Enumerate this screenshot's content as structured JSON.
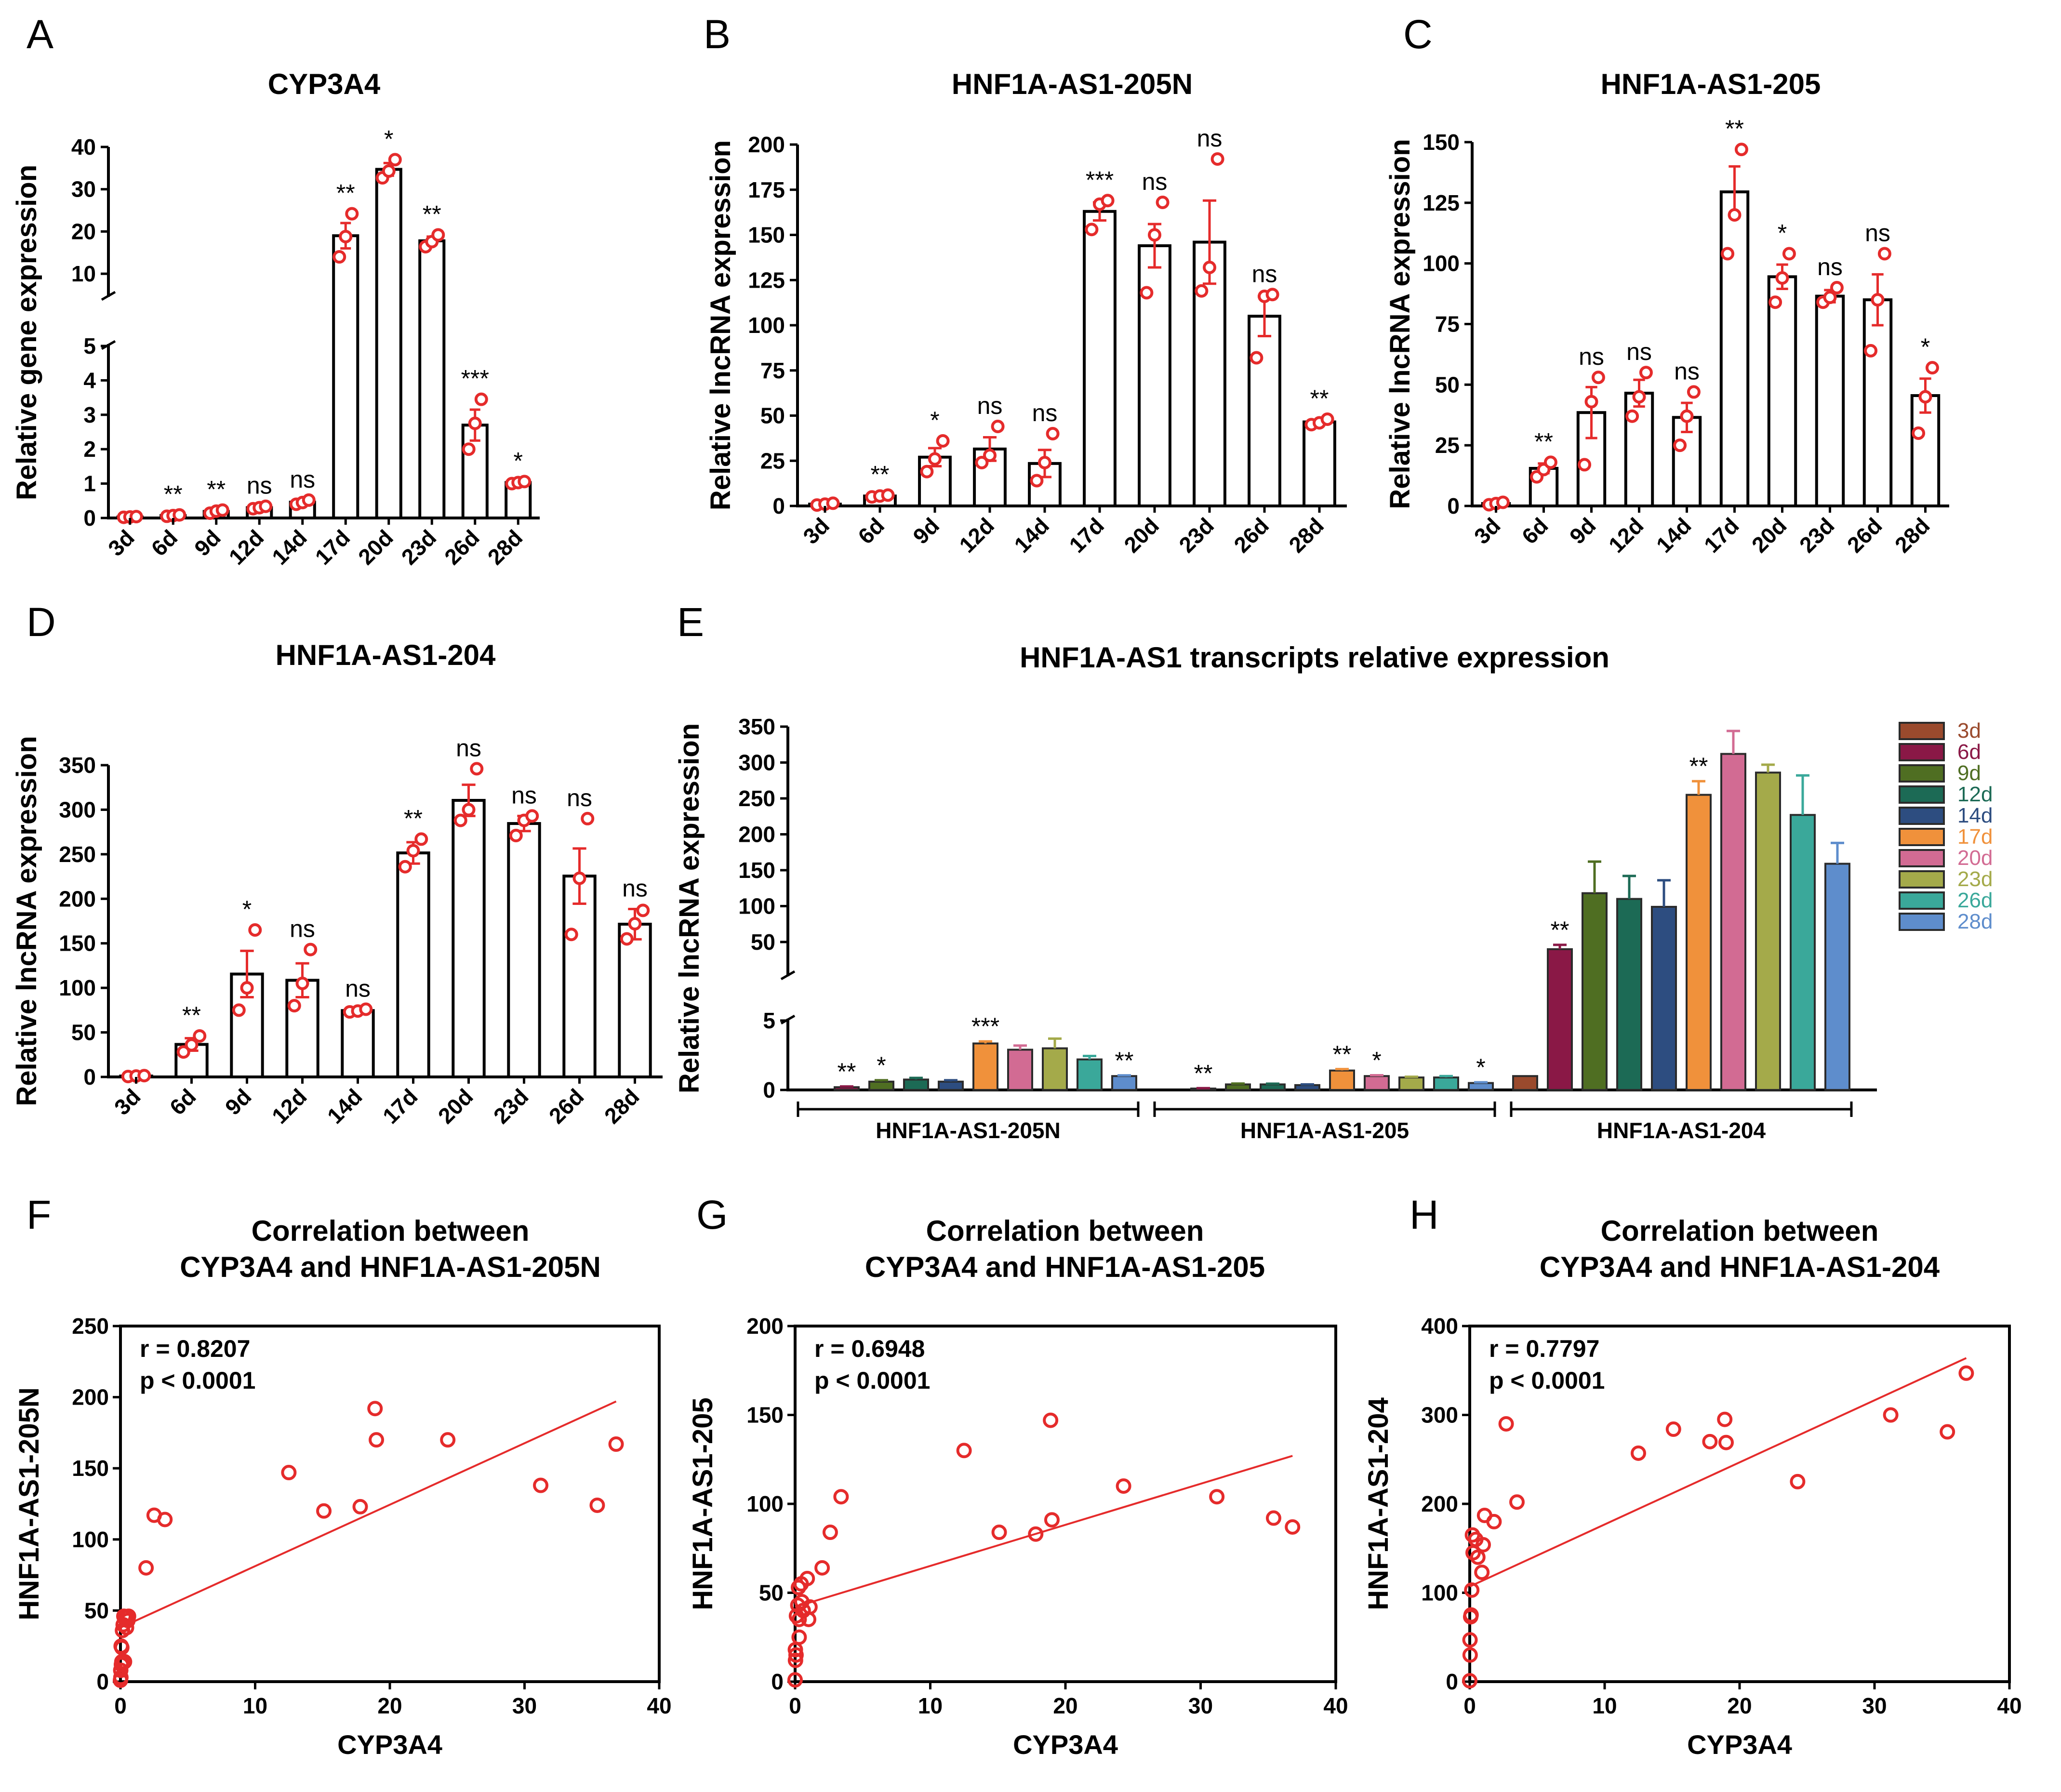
{
  "chart_data": [
    {
      "panel": "A",
      "type": "bar",
      "title": "CYP3A4",
      "ylabel": "Relative gene expression",
      "xlabel": "",
      "categories": [
        "3d",
        "6d",
        "9d",
        "12d",
        "14d",
        "17d",
        "20d",
        "23d",
        "26d",
        "28d"
      ],
      "values": [
        0.03,
        0.07,
        0.19,
        0.3,
        0.46,
        19,
        34.7,
        17.8,
        2.7,
        1.03
      ],
      "errors": [
        0.01,
        0.02,
        0.04,
        0.03,
        0.05,
        3,
        1.5,
        1.0,
        0.45,
        0.03
      ],
      "points": [
        [
          0.02,
          0.03,
          0.04
        ],
        [
          0.05,
          0.07,
          0.09
        ],
        [
          0.14,
          0.2,
          0.23
        ],
        [
          0.27,
          0.3,
          0.34
        ],
        [
          0.4,
          0.45,
          0.52
        ],
        [
          14,
          18.8,
          24.2
        ],
        [
          32.7,
          34.3,
          37
        ],
        [
          16.4,
          17.6,
          19.2
        ],
        [
          2.0,
          2.75,
          3.45
        ],
        [
          1.0,
          1.03,
          1.06
        ]
      ],
      "significance": [
        "",
        "**",
        "**",
        "ns",
        "ns",
        "**",
        "*",
        "**",
        "***",
        "*"
      ],
      "axis_break": {
        "lower_range": [
          0,
          5
        ],
        "upper_range": [
          5,
          40
        ]
      },
      "yticks_lower": [
        "0",
        "1",
        "2",
        "3",
        "4",
        "5"
      ],
      "yticks_upper": [
        "10",
        "20",
        "30",
        "40"
      ]
    },
    {
      "panel": "B",
      "type": "bar",
      "title": "HNF1A-AS1-205N",
      "ylabel": "Relative lncRNA expression",
      "categories": [
        "3d",
        "6d",
        "9d",
        "12d",
        "14d",
        "17d",
        "20d",
        "23d",
        "26d",
        "28d"
      ],
      "values": [
        1,
        5.5,
        27,
        31.5,
        23.5,
        163,
        144,
        146,
        105,
        46.5
      ],
      "errors": [
        0.5,
        0.5,
        5,
        6.5,
        7.5,
        5,
        12,
        23,
        11,
        1
      ],
      "points": [
        [
          0.5,
          1,
          1.5
        ],
        [
          5,
          5.5,
          6
        ],
        [
          19,
          26,
          36
        ],
        [
          24,
          28,
          44
        ],
        [
          14,
          24,
          40
        ],
        [
          153,
          167,
          169
        ],
        [
          118,
          150,
          168
        ],
        [
          119,
          132,
          192
        ],
        [
          82,
          116,
          117
        ],
        [
          45,
          46,
          48
        ]
      ],
      "significance": [
        "",
        "**",
        "*",
        "ns",
        "ns",
        "***",
        "ns",
        "ns",
        "ns",
        "**"
      ],
      "ylim": [
        0,
        200
      ],
      "yticks": [
        "0",
        "25",
        "50",
        "75",
        "100",
        "125",
        "150",
        "175",
        "200"
      ]
    },
    {
      "panel": "C",
      "type": "bar",
      "title": "HNF1A-AS1-205",
      "ylabel": "Relative lncRNA expression",
      "categories": [
        "3d",
        "6d",
        "9d",
        "12d",
        "14d",
        "17d",
        "20d",
        "23d",
        "26d",
        "28d"
      ],
      "values": [
        1,
        15.5,
        38.5,
        46.5,
        36.5,
        129.5,
        94.5,
        86.5,
        85,
        45.5
      ],
      "errors": [
        0.5,
        2,
        10.5,
        5.5,
        6,
        10.5,
        5,
        2.5,
        10.5,
        7
      ],
      "points": [
        [
          0.5,
          1,
          1.5
        ],
        [
          12,
          15,
          18
        ],
        [
          17,
          43,
          53
        ],
        [
          37,
          45,
          55
        ],
        [
          25,
          37,
          47
        ],
        [
          104,
          120,
          147
        ],
        [
          84,
          94,
          104
        ],
        [
          84,
          86,
          90
        ],
        [
          64,
          85,
          104
        ],
        [
          30,
          45,
          57
        ]
      ],
      "significance": [
        "",
        "**",
        "ns",
        "ns",
        "ns",
        "**",
        "*",
        "ns",
        "ns",
        "*"
      ],
      "ylim": [
        0,
        150
      ],
      "yticks": [
        "0",
        "25",
        "50",
        "75",
        "100",
        "125",
        "150"
      ]
    },
    {
      "panel": "D",
      "type": "bar",
      "title": "HNF1A-AS1-204",
      "ylabel": "Relative lncRNA expression",
      "categories": [
        "3d",
        "6d",
        "9d",
        "12d",
        "14d",
        "17d",
        "20d",
        "23d",
        "26d",
        "28d"
      ],
      "values": [
        1,
        36.5,
        115.5,
        108.5,
        74.5,
        251.5,
        310.5,
        284.5,
        225.5,
        171.5
      ],
      "errors": [
        0.5,
        7,
        26,
        19,
        1.5,
        12,
        17.5,
        8.5,
        31,
        17
      ],
      "points": [
        [
          0.5,
          1,
          1.5
        ],
        [
          28,
          36,
          46
        ],
        [
          75,
          100,
          165
        ],
        [
          80,
          105,
          143
        ],
        [
          73,
          74,
          76
        ],
        [
          236,
          254,
          267
        ],
        [
          288,
          300,
          346
        ],
        [
          271,
          288,
          293
        ],
        [
          160,
          223,
          290
        ],
        [
          155,
          172,
          187
        ]
      ],
      "significance": [
        "",
        "**",
        "*",
        "ns",
        "ns",
        "**",
        "ns",
        "ns",
        "ns",
        "ns"
      ],
      "ylim": [
        0,
        350
      ],
      "yticks": [
        "0",
        "50",
        "100",
        "150",
        "200",
        "250",
        "300",
        "350"
      ]
    },
    {
      "panel": "E",
      "type": "bar",
      "title": "HNF1A-AS1 transcripts relative expression",
      "ylabel": "Relative lncRNA expression",
      "groups": [
        "HNF1A-AS1-205N",
        "HNF1A-AS1-205",
        "HNF1A-AS1-204"
      ],
      "series": [
        {
          "name": "3d",
          "color": "#9a4a2d",
          "values": [
            0,
            0,
            1
          ],
          "errors": [
            0,
            0,
            0
          ],
          "significance": [
            "",
            "",
            ""
          ]
        },
        {
          "name": "6d",
          "color": "#8a1846",
          "values": [
            0.2,
            0.1,
            40
          ],
          "errors": [
            0.05,
            0.03,
            6
          ],
          "significance": [
            "**",
            "**",
            "**"
          ]
        },
        {
          "name": "9d",
          "color": "#4f6e22",
          "values": [
            0.6,
            0.4,
            118
          ],
          "errors": [
            0.1,
            0.06,
            44
          ],
          "significance": [
            "*",
            "",
            ""
          ]
        },
        {
          "name": "12d",
          "color": "#1c6a55",
          "values": [
            0.75,
            0.4,
            110
          ],
          "errors": [
            0.12,
            0.05,
            32
          ],
          "significance": [
            "",
            "",
            ""
          ]
        },
        {
          "name": "14d",
          "color": "#2d4d80",
          "values": [
            0.6,
            0.35,
            99
          ],
          "errors": [
            0.1,
            0.05,
            37
          ],
          "significance": [
            "",
            "",
            ""
          ]
        },
        {
          "name": "17d",
          "color": "#f0913b",
          "values": [
            3.35,
            1.4,
            255
          ],
          "errors": [
            0.15,
            0.1,
            19
          ],
          "significance": [
            "***",
            "**",
            "**"
          ]
        },
        {
          "name": "20d",
          "color": "#d26b93",
          "values": [
            2.9,
            1.0,
            312
          ],
          "errors": [
            0.3,
            0.06,
            32
          ],
          "significance": [
            "",
            "*",
            ""
          ]
        },
        {
          "name": "23d",
          "color": "#a4aa4a",
          "values": [
            3.0,
            0.9,
            286
          ],
          "errors": [
            0.7,
            0.05,
            11
          ],
          "significance": [
            "",
            "",
            ""
          ]
        },
        {
          "name": "26d",
          "color": "#3aa89a",
          "values": [
            2.2,
            0.9,
            227
          ],
          "errors": [
            0.25,
            0.1,
            55
          ],
          "significance": [
            "",
            "",
            ""
          ]
        },
        {
          "name": "28d",
          "color": "#5e8dcc",
          "values": [
            1.0,
            0.5,
            159
          ],
          "errors": [
            0.05,
            0.05,
            29
          ],
          "significance": [
            "**",
            "*",
            ""
          ]
        }
      ],
      "axis_break": {
        "lower_range": [
          0,
          5
        ],
        "upper_range": [
          5,
          350
        ]
      },
      "yticks_lower": [
        "0",
        "5"
      ],
      "yticks_upper": [
        "50",
        "100",
        "150",
        "200",
        "250",
        "300",
        "350"
      ]
    },
    {
      "panel": "F",
      "type": "scatter",
      "title": "Correlation between CYP3A4 and HNF1A-AS1-205N",
      "xlabel": "CYP3A4",
      "ylabel": "HNF1A-AS1-205N",
      "xlim": [
        0,
        40
      ],
      "ylim": [
        0,
        250
      ],
      "xticks": [
        "0",
        "10",
        "20",
        "30",
        "40"
      ],
      "yticks": [
        "0",
        "50",
        "100",
        "150",
        "200",
        "250"
      ],
      "r": "r = 0.8207",
      "p": "p < 0.0001",
      "fit": {
        "x": [
          0,
          36.8
        ],
        "y": [
          38,
          197
        ]
      },
      "points": [
        [
          0,
          1
        ],
        [
          0.03,
          3
        ],
        [
          0.02,
          8
        ],
        [
          0.07,
          12
        ],
        [
          0.05,
          25
        ],
        [
          0.1,
          24
        ],
        [
          0.15,
          36
        ],
        [
          0.2,
          40
        ],
        [
          0.25,
          46
        ],
        [
          0.3,
          45
        ],
        [
          0.45,
          38
        ],
        [
          0.5,
          45
        ],
        [
          0.6,
          46
        ],
        [
          0.55,
          43
        ],
        [
          0.3,
          14
        ],
        [
          0.1,
          14
        ],
        [
          1.9,
          80
        ],
        [
          2.5,
          117
        ],
        [
          3.3,
          114
        ],
        [
          12.5,
          147
        ],
        [
          15.1,
          120
        ],
        [
          17.8,
          123
        ],
        [
          18.9,
          192
        ],
        [
          19.0,
          170
        ],
        [
          24.3,
          170
        ],
        [
          31.2,
          138
        ],
        [
          35.4,
          124
        ],
        [
          36.8,
          167
        ]
      ]
    },
    {
      "panel": "G",
      "type": "scatter",
      "title": "Correlation between CYP3A4 and HNF1A-AS1-205",
      "xlabel": "CYP3A4",
      "ylabel": "HNF1A-AS1-205",
      "xlim": [
        0,
        40
      ],
      "ylim": [
        0,
        200
      ],
      "xticks": [
        "0",
        "10",
        "20",
        "30",
        "40"
      ],
      "yticks": [
        "0",
        "50",
        "100",
        "150",
        "200"
      ],
      "r": "r = 0.6948",
      "p": "p < 0.0001",
      "fit": {
        "x": [
          0,
          36.8
        ],
        "y": [
          42,
          127
        ]
      },
      "points": [
        [
          0,
          1
        ],
        [
          0.03,
          12
        ],
        [
          0.02,
          18
        ],
        [
          0.07,
          15
        ],
        [
          0.1,
          37
        ],
        [
          0.2,
          43
        ],
        [
          0.25,
          53
        ],
        [
          0.3,
          25
        ],
        [
          0.45,
          55
        ],
        [
          0.5,
          45
        ],
        [
          0.3,
          35
        ],
        [
          0.6,
          40
        ],
        [
          0.9,
          58
        ],
        [
          1.0,
          35
        ],
        [
          1.1,
          42
        ],
        [
          2.0,
          64
        ],
        [
          2.6,
          84
        ],
        [
          3.4,
          104
        ],
        [
          12.5,
          130
        ],
        [
          15.1,
          84
        ],
        [
          17.8,
          83
        ],
        [
          18.9,
          147
        ],
        [
          19.0,
          91
        ],
        [
          24.3,
          110
        ],
        [
          31.2,
          104
        ],
        [
          35.4,
          92
        ],
        [
          36.8,
          87
        ]
      ]
    },
    {
      "panel": "H",
      "type": "scatter",
      "title": "Correlation between CYP3A4 and HNF1A-AS1-204",
      "xlabel": "CYP3A4",
      "ylabel": "HNF1A-AS1-204",
      "xlim": [
        0,
        40
      ],
      "ylim": [
        0,
        400
      ],
      "xticks": [
        "0",
        "10",
        "20",
        "30",
        "40"
      ],
      "yticks": [
        "0",
        "100",
        "200",
        "300",
        "400"
      ],
      "r": "r = 0.7797",
      "p": "p < 0.0001",
      "fit": {
        "x": [
          0,
          36.8
        ],
        "y": [
          107,
          364
        ]
      },
      "points": [
        [
          0,
          1
        ],
        [
          0.03,
          30
        ],
        [
          0.02,
          47
        ],
        [
          0.07,
          73
        ],
        [
          0.1,
          75
        ],
        [
          0.15,
          103
        ],
        [
          0.2,
          165
        ],
        [
          0.25,
          145
        ],
        [
          0.45,
          160
        ],
        [
          0.6,
          140
        ],
        [
          0.9,
          123
        ],
        [
          1.0,
          154
        ],
        [
          1.1,
          187
        ],
        [
          1.8,
          180
        ],
        [
          2.7,
          290
        ],
        [
          3.5,
          202
        ],
        [
          12.5,
          257
        ],
        [
          15.1,
          284
        ],
        [
          17.8,
          270
        ],
        [
          18.9,
          295
        ],
        [
          19.0,
          269
        ],
        [
          24.3,
          225
        ],
        [
          31.2,
          300
        ],
        [
          35.4,
          281
        ],
        [
          36.8,
          347
        ]
      ]
    }
  ]
}
